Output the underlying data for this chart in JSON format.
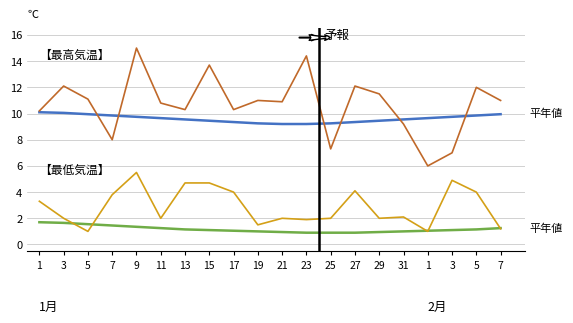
{
  "ylim": [
    -0.5,
    16.5
  ],
  "yticks": [
    0,
    2,
    4,
    6,
    8,
    10,
    12,
    14,
    16
  ],
  "forecast_x_pos": 24,
  "celsius_label": "℃",
  "forecast_label": "予報",
  "high_label": "「最高気温」",
  "low_label": "「最低気温」",
  "high_label2": "【最高気温】",
  "low_label2": "【最低気温】",
  "heian_label": "平年値",
  "jan_label": "1月",
  "feb_label": "2月",
  "x_tick_labels": [
    "1",
    "3",
    "5",
    "7",
    "9",
    "11",
    "13",
    "15",
    "17",
    "19",
    "21",
    "23",
    "25",
    "27",
    "29",
    "31",
    "1",
    "3",
    "5",
    "7"
  ],
  "x_tick_pos": [
    1,
    3,
    5,
    7,
    9,
    11,
    13,
    15,
    17,
    19,
    21,
    23,
    25,
    27,
    29,
    31,
    33,
    35,
    37,
    39
  ],
  "high_x": [
    1,
    3,
    5,
    7,
    9,
    11,
    13,
    15,
    17,
    19,
    21,
    23,
    25,
    27,
    29,
    31,
    33,
    35,
    37,
    39
  ],
  "high_y": [
    10.2,
    12.1,
    11.1,
    8.0,
    15.0,
    10.8,
    10.3,
    13.7,
    10.3,
    11.0,
    10.9,
    14.4,
    7.3,
    12.1,
    11.5,
    9.2,
    6.0,
    7.0,
    12.0,
    11.0
  ],
  "low_x": [
    1,
    3,
    5,
    7,
    9,
    11,
    13,
    15,
    17,
    19,
    21,
    23,
    25,
    27,
    29,
    31,
    33,
    35,
    37,
    39
  ],
  "low_y": [
    3.3,
    2.0,
    1.0,
    3.8,
    5.5,
    2.0,
    4.7,
    4.7,
    4.0,
    1.5,
    2.0,
    1.9,
    2.0,
    4.1,
    2.0,
    2.1,
    1.0,
    4.9,
    4.0,
    1.2
  ],
  "avg_high_x": [
    1,
    3,
    5,
    7,
    9,
    11,
    13,
    15,
    17,
    19,
    21,
    23,
    25,
    27,
    29,
    31,
    33,
    35,
    37,
    39
  ],
  "avg_high_y": [
    10.1,
    10.05,
    9.95,
    9.85,
    9.75,
    9.65,
    9.55,
    9.45,
    9.35,
    9.25,
    9.2,
    9.2,
    9.25,
    9.35,
    9.45,
    9.55,
    9.65,
    9.75,
    9.85,
    9.95
  ],
  "avg_low_x": [
    1,
    3,
    5,
    7,
    9,
    11,
    13,
    15,
    17,
    19,
    21,
    23,
    25,
    27,
    29,
    31,
    33,
    35,
    37,
    39
  ],
  "avg_low_y": [
    1.7,
    1.65,
    1.55,
    1.45,
    1.35,
    1.25,
    1.15,
    1.1,
    1.05,
    1.0,
    0.95,
    0.9,
    0.9,
    0.9,
    0.95,
    1.0,
    1.05,
    1.1,
    1.15,
    1.25
  ],
  "color_high": "#c0692a",
  "color_low": "#d4a017",
  "color_avg_high": "#4472c4",
  "color_avg_low": "#70ad47",
  "bg_color": "#ffffff",
  "grid_color": "#bfbfbf",
  "lw_data": 1.2,
  "lw_avg": 1.8
}
